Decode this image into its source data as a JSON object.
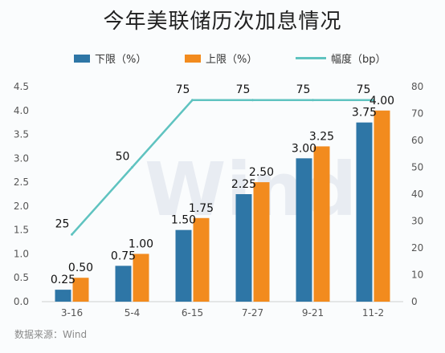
{
  "title": "今年美联储历次加息情况",
  "source": "数据来源：Wind",
  "watermark": "Wind",
  "chart_data": {
    "type": "bar",
    "title": "今年美联储历次加息情况",
    "categories": [
      "3-16",
      "5-4",
      "6-15",
      "7-27",
      "9-21",
      "11-2"
    ],
    "series": [
      {
        "name": "下限（%）",
        "type": "bar",
        "axis": "left",
        "color": "#2e76a6",
        "values": [
          0.25,
          0.75,
          1.5,
          2.25,
          3.0,
          3.75
        ],
        "labels": [
          "0.25",
          "0.75",
          "1.50",
          "2.25",
          "3.00",
          "3.75"
        ]
      },
      {
        "name": "上限（%）",
        "type": "bar",
        "axis": "left",
        "color": "#f28b1e",
        "values": [
          0.5,
          1.0,
          1.75,
          2.5,
          3.25,
          4.0
        ],
        "labels": [
          "0.50",
          "1.00",
          "1.75",
          "2.50",
          "3.25",
          "4.00"
        ]
      },
      {
        "name": "幅度（bp）",
        "type": "line",
        "axis": "right",
        "color": "#5fc3c0",
        "values": [
          25,
          50,
          75,
          75,
          75,
          75
        ],
        "labels": [
          "25",
          "50",
          "75",
          "75",
          "75",
          "75"
        ]
      }
    ],
    "y_left": {
      "min": 0,
      "max": 4.5,
      "ticks": [
        "0.0",
        "0.5",
        "1.0",
        "1.5",
        "2.0",
        "2.5",
        "3.0",
        "3.5",
        "4.0",
        "4.5"
      ]
    },
    "y_right": {
      "min": 0,
      "max": 80,
      "ticks": [
        "0",
        "10",
        "20",
        "30",
        "40",
        "50",
        "60",
        "70",
        "80"
      ]
    },
    "grid": false,
    "legend_position": "top"
  }
}
